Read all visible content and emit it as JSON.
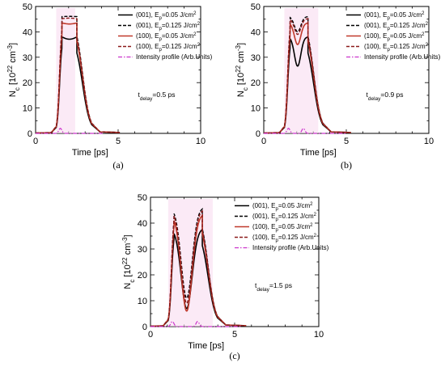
{
  "legend_sub": "p",
  "legend_unit_sup": "2",
  "chart_data": [
    {
      "type": "line",
      "panel_label": "(a)",
      "xlabel": "Time  [ps]",
      "ylabel": {
        "main": "N",
        "sub": "c",
        "unit_a": " [10",
        "sup1": "22",
        "unit_b": " cm",
        "sup2": "-3",
        "unit_c": "]"
      },
      "xlim": [
        0,
        10
      ],
      "ylim": [
        0,
        50
      ],
      "xticks": [
        0,
        5,
        10
      ],
      "yticks": [
        0,
        10,
        20,
        30,
        40,
        50
      ],
      "annotation": {
        "main": "t",
        "sub": "delay",
        "rest": "=0.5 ps"
      },
      "pulses": [
        1.5
      ],
      "peak": 2.0,
      "series": [
        {
          "label_prefix": "(001), E",
          "label_suffix": "=0.05 J/cm",
          "color": "#000000",
          "dash": "",
          "width": 1.6,
          "levels": [
            38.0,
            36.5,
            38.0
          ]
        },
        {
          "label_prefix": "(001), E",
          "label_suffix": "=0.125 J/cm",
          "color": "#000000",
          "dash": "4,2",
          "width": 1.4,
          "levels": [
            46.0,
            45.5,
            46.0
          ]
        },
        {
          "label_prefix": "(100), E",
          "label_suffix": "=0.05 J/cm",
          "color": "#c0392b",
          "dash": "",
          "width": 1.6,
          "levels": [
            43.5,
            42.5,
            43.5
          ]
        },
        {
          "label_prefix": "(100), E",
          "label_suffix": "=0.125 J/cm",
          "color": "#8b1a1a",
          "dash": "4,2",
          "width": 1.4,
          "levels": [
            45.2,
            44.8,
            45.2
          ]
        },
        {
          "label": "Intensity profile (Arb.Units)",
          "color": "#cc33cc",
          "dash": "5,2,1.5,2",
          "width": 1.2,
          "intensity": true
        }
      ]
    },
    {
      "type": "line",
      "panel_label": "(b)",
      "xlabel": "Time  [ps]",
      "ylabel": {
        "main": "N",
        "sub": "c",
        "unit_a": " [10",
        "sup1": "22",
        "unit_b": " cm",
        "sup2": "-3",
        "unit_c": "]"
      },
      "xlim": [
        0,
        10
      ],
      "ylim": [
        0,
        50
      ],
      "xticks": [
        0,
        5,
        10
      ],
      "yticks": [
        0,
        10,
        20,
        30,
        40,
        50
      ],
      "annotation": {
        "main": "t",
        "sub": "delay",
        "rest": "=0.9 ps"
      },
      "pulses": [
        1.5,
        2.4
      ],
      "peak": 2.0,
      "series": [
        {
          "label_prefix": "(001), E",
          "label_suffix": "=0.05 J/cm",
          "color": "#000000",
          "dash": "",
          "width": 1.6,
          "levels": [
            38.0,
            26.5,
            38.0
          ]
        },
        {
          "label_prefix": "(001), E",
          "label_suffix": "=0.125 J/cm",
          "color": "#000000",
          "dash": "4,2",
          "width": 1.4,
          "levels": [
            46.0,
            40.0,
            46.0
          ]
        },
        {
          "label_prefix": "(100), E",
          "label_suffix": "=0.05 J/cm",
          "color": "#c0392b",
          "dash": "",
          "width": 1.6,
          "levels": [
            43.5,
            35.0,
            43.5
          ]
        },
        {
          "label_prefix": "(100), E",
          "label_suffix": "=0.125 J/cm",
          "color": "#8b1a1a",
          "dash": "4,2",
          "width": 1.4,
          "levels": [
            45.2,
            39.0,
            45.2
          ]
        },
        {
          "label": "Intensity profile (Arb.Units)",
          "color": "#cc33cc",
          "dash": "5,2,1.5,2",
          "width": 1.2,
          "intensity": true
        }
      ]
    },
    {
      "type": "line",
      "panel_label": "(c)",
      "xlabel": "Time  [ps]",
      "ylabel": {
        "main": "N",
        "sub": "c",
        "unit_a": " [10",
        "sup1": "22",
        "unit_b": " cm",
        "sup2": "-3",
        "unit_c": "]"
      },
      "xlim": [
        0,
        10
      ],
      "ylim": [
        0,
        50
      ],
      "xticks": [
        0,
        5,
        10
      ],
      "yticks": [
        0,
        10,
        20,
        30,
        40,
        50
      ],
      "annotation": {
        "main": "t",
        "sub": "delay",
        "rest": "=1.5 ps"
      },
      "pulses": [
        1.3,
        2.8
      ],
      "peak": 2.0,
      "series": [
        {
          "label_prefix": "(001), E",
          "label_suffix": "=0.05 J/cm",
          "color": "#000000",
          "dash": "",
          "width": 1.6,
          "levels": [
            38.0,
            7.0,
            38.0
          ]
        },
        {
          "label_prefix": "(001), E",
          "label_suffix": "=0.125 J/cm",
          "color": "#000000",
          "dash": "4,2",
          "width": 1.4,
          "levels": [
            46.0,
            11.0,
            46.0
          ]
        },
        {
          "label_prefix": "(100), E",
          "label_suffix": "=0.05 J/cm",
          "color": "#c0392b",
          "dash": "",
          "width": 1.6,
          "levels": [
            43.5,
            6.0,
            43.5
          ]
        },
        {
          "label_prefix": "(100), E",
          "label_suffix": "=0.125 J/cm",
          "color": "#8b1a1a",
          "dash": "4,2",
          "width": 1.4,
          "levels": [
            45.2,
            9.0,
            45.2
          ]
        },
        {
          "label": "Intensity profile (Arb.Units)",
          "color": "#cc33cc",
          "dash": "5,2,1.5,2",
          "width": 1.2,
          "intensity": true
        }
      ]
    }
  ]
}
